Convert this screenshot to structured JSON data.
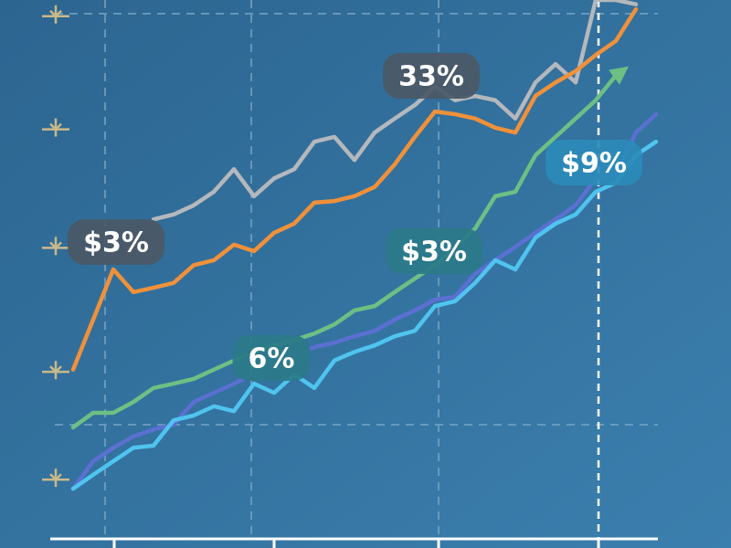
{
  "chart_data": {
    "type": "line",
    "categories": [
      null,
      null,
      null,
      null,
      null,
      null,
      null,
      null,
      null,
      null,
      null,
      null,
      null,
      null,
      null,
      null,
      null,
      null,
      null,
      null,
      null,
      null,
      null,
      null,
      null,
      null,
      null,
      null,
      null,
      null
    ],
    "ylim": [
      0,
      100
    ],
    "yticks": [
      97,
      76,
      54,
      31,
      11
    ],
    "series": [
      {
        "name": null,
        "color": "#b4b8bc",
        "values": [
          null,
          null,
          null,
          null,
          59.3,
          60.2,
          61.9,
          64.4,
          68.6,
          63.6,
          66.9,
          68.6,
          73.7,
          74.6,
          70.3,
          75.4,
          78,
          80.5,
          83.9,
          81.4,
          82.2,
          81.4,
          78,
          84.7,
          88.1,
          84.7,
          100,
          100,
          99.2,
          null
        ]
      },
      {
        "name": null,
        "color": "#f0913a",
        "values": [
          31.4,
          40.7,
          50,
          45.8,
          46.6,
          47.5,
          50.8,
          51.7,
          54.6,
          53.4,
          56.8,
          58.5,
          62.4,
          62.7,
          63.6,
          65.3,
          69.5,
          74.6,
          79.3,
          78.8,
          78,
          76.3,
          75.4,
          82.2,
          84.7,
          86.8,
          89.8,
          92.4,
          98.3,
          null
        ]
      },
      {
        "name": null,
        "color": "#6cc083",
        "values": [
          20.7,
          23.4,
          23.4,
          25.4,
          28,
          28.8,
          29.7,
          31.4,
          33.1,
          34.7,
          35.9,
          36.9,
          38.1,
          39.8,
          42.4,
          43.2,
          45.8,
          48.3,
          50.8,
          54.2,
          57.6,
          63.6,
          64.4,
          71.2,
          74.6,
          78,
          81.4,
          86,
          null,
          null
        ]
      },
      {
        "name": null,
        "color": "#5b70d2",
        "values": [
          9.3,
          14.4,
          16.9,
          19,
          20.3,
          21.2,
          25.4,
          27.1,
          28.8,
          30.5,
          33.1,
          34.2,
          35.6,
          36.4,
          37.6,
          38.6,
          40.7,
          42.4,
          44.4,
          44.9,
          49.2,
          51.7,
          54.2,
          56.8,
          59.3,
          61.9,
          66.9,
          67.8,
          75.4,
          78.8
        ]
      },
      {
        "name": null,
        "color": "#4fc4ef",
        "values": [
          9.3,
          11.9,
          14.4,
          16.9,
          17.3,
          22,
          22.9,
          24.6,
          23.7,
          28.8,
          27.1,
          30.5,
          28,
          33.1,
          34.7,
          35.9,
          37.6,
          38.6,
          43.2,
          44.1,
          47.5,
          51.7,
          50,
          55.9,
          58.5,
          60.2,
          64.4,
          66.1,
          71.2,
          73.7
        ]
      }
    ],
    "annotations": [
      "33%",
      "$3%",
      "$3%",
      "6%",
      "$9%"
    ]
  }
}
